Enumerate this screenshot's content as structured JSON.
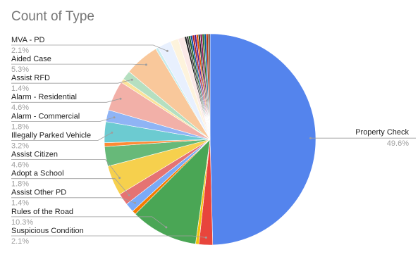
{
  "chart_data": {
    "type": "pie",
    "title": "Count of Type",
    "categories": [
      "Property Check",
      "Suspicious Condition",
      null,
      "Rules of the Road",
      null,
      "Assist Other PD",
      "Adopt a School",
      "Assist Citizen",
      null,
      null,
      "Illegally Parked Vehicle",
      "Alarm - Commercial",
      "Alarm - Residential",
      null,
      "Assist RFD",
      "Aided Case",
      null,
      "MVA - PD",
      null,
      null,
      null,
      null,
      null,
      null,
      null,
      null,
      null,
      null,
      null,
      null,
      null,
      null,
      null
    ],
    "values": [
      49.6,
      2.1,
      0.5,
      10.3,
      0.6,
      1.4,
      1.8,
      4.6,
      3.0,
      0.6,
      3.2,
      1.8,
      4.6,
      0.6,
      1.4,
      5.3,
      0.4,
      2.1,
      1.2,
      1.0,
      0.3,
      0.3,
      0.3,
      0.3,
      0.3,
      0.3,
      0.3,
      0.3,
      0.3,
      0.3,
      0.3,
      0.3,
      0.3
    ],
    "value_labels": [
      "49.6%",
      "2.1%",
      null,
      "10.3%",
      null,
      "1.4%",
      "1.8%",
      "4.6%",
      null,
      null,
      "3.2%",
      "1.8%",
      "4.6%",
      null,
      "1.4%",
      "5.3%",
      null,
      "2.1%",
      null,
      null,
      null,
      null,
      null,
      null,
      null,
      null,
      null,
      null,
      null,
      null,
      null,
      null,
      null
    ],
    "colors": [
      "#5484ed",
      "#e8453c",
      "#f4c20d",
      "#4aa655",
      "#f57c00",
      "#7baaf7",
      "#e57373",
      "#f6d04d",
      "#67b979",
      "#ff8a33",
      "#6ccbd1",
      "#8fb4f5",
      "#f2b0a8",
      "#fbe39a",
      "#b5dfc0",
      "#f9c89b",
      "#c7ecee",
      "#e8f0fe",
      "#fdf3dc",
      "#fbe9e7",
      "#1a1a1a",
      "#3b3b3b",
      "#1b5e20",
      "#0d47a1",
      "#b71c1c",
      "#4a148c",
      "#e65100",
      "#263238",
      "#880e4f",
      "#33691e",
      "#01579b",
      "#bf360c",
      "#5d4037"
    ]
  }
}
